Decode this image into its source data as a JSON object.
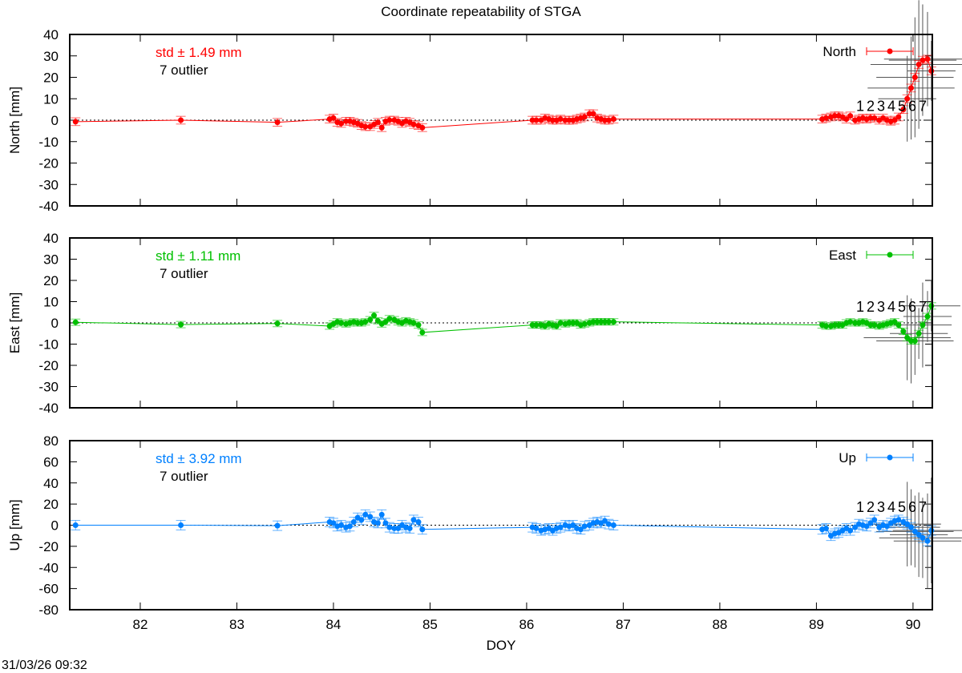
{
  "chart_data": {
    "type": "line",
    "title": "Coordinate repeatability of STGA",
    "xlabel": "DOY",
    "xlim": [
      81.27,
      90.2
    ],
    "xticks": [
      82,
      83,
      84,
      85,
      86,
      87,
      88,
      89,
      90
    ],
    "timestamp": "31/03/26 09:32",
    "doy": [
      81.33,
      82.42,
      83.42,
      83.96,
      84.0,
      84.04,
      84.08,
      84.13,
      84.17,
      84.21,
      84.25,
      84.29,
      84.33,
      84.38,
      84.42,
      84.46,
      84.5,
      84.54,
      84.58,
      84.63,
      84.67,
      84.71,
      84.75,
      84.79,
      84.83,
      84.88,
      84.92,
      86.06,
      86.1,
      86.15,
      86.19,
      86.23,
      86.27,
      86.31,
      86.35,
      86.4,
      86.44,
      86.48,
      86.52,
      86.56,
      86.6,
      86.65,
      86.69,
      86.73,
      86.77,
      86.81,
      86.85,
      86.9,
      89.06,
      89.1,
      89.15,
      89.19,
      89.23,
      89.27,
      89.31,
      89.35,
      89.4,
      89.44,
      89.48,
      89.52,
      89.56,
      89.6,
      89.65,
      89.69,
      89.73,
      89.77,
      89.81,
      89.85,
      89.9,
      89.94,
      89.98,
      90.02,
      90.06,
      90.1,
      90.15,
      90.19
    ],
    "panels": [
      {
        "name": "North",
        "ylabel": "North [mm]",
        "ylim": [
          -40,
          40
        ],
        "yticks": [
          -40,
          -30,
          -20,
          -10,
          0,
          10,
          20,
          30,
          40
        ],
        "color": "#ff0000",
        "std_text": "std ± 1.49 mm",
        "outlier_text": "7 outlier",
        "error": 1.8,
        "values": [
          -0.7,
          0,
          -1,
          0.5,
          1,
          -1,
          -1.5,
          -0.5,
          -0.5,
          -1,
          -1.5,
          -2.5,
          -3,
          -3,
          -2,
          -1,
          -3.5,
          -0.5,
          0,
          0,
          -0.5,
          -1.5,
          -0.5,
          -1,
          -2,
          -2.5,
          -3.5,
          0,
          0,
          0,
          1,
          0.5,
          0,
          0,
          0.5,
          0,
          0,
          0,
          0.5,
          1,
          1.5,
          3,
          3,
          1,
          0.5,
          0,
          0,
          0.5,
          0.5,
          1,
          1.5,
          2,
          2,
          1.5,
          0.5,
          2,
          0,
          0.5,
          1,
          0.5,
          1,
          1,
          0,
          1,
          0,
          -0.5,
          0,
          1.5,
          5,
          10,
          15,
          20,
          26,
          28,
          28.5,
          23
        ],
        "outliers": {
          "labels": [
            "1",
            "2",
            "3",
            "4",
            "5",
            "6",
            "7"
          ],
          "label_value": 7,
          "err_y": [
            20,
            24,
            28,
            30,
            26,
            22,
            14
          ],
          "err_x": [
            0.3,
            0.45,
            0.4,
            0.5,
            0.35,
            0.45,
            0.25
          ]
        }
      },
      {
        "name": "East",
        "ylabel": "East [mm]",
        "ylim": [
          -40,
          40
        ],
        "yticks": [
          -40,
          -30,
          -20,
          -10,
          0,
          10,
          20,
          30,
          40
        ],
        "color": "#00c000",
        "std_text": "std ± 1.11 mm",
        "outlier_text": "7 outlier",
        "error": 1.5,
        "values": [
          0.3,
          -0.8,
          -0.3,
          -1.5,
          -0.5,
          0.5,
          0,
          -0.5,
          0,
          0.5,
          0,
          0,
          0.5,
          1.5,
          3.5,
          1,
          -0.5,
          0.5,
          2,
          1.5,
          0.5,
          0,
          1,
          0.5,
          0,
          -1,
          -4.5,
          -1,
          -1,
          -1,
          -1.5,
          -0.5,
          -1,
          -1.5,
          0,
          -0.5,
          0,
          0,
          0,
          -1,
          -0.5,
          0,
          0.5,
          0.5,
          0.5,
          0.5,
          0.5,
          0.5,
          -1,
          -1.5,
          -1.5,
          -1,
          -1,
          -1,
          0,
          0.5,
          0,
          0,
          0.5,
          0,
          -1,
          -1,
          -1.5,
          -1,
          -0.5,
          0,
          0.5,
          -1,
          -4,
          -7,
          -8.5,
          -8.5,
          -5,
          -1,
          3,
          8
        ],
        "outliers": {
          "labels": [
            "1",
            "2",
            "3",
            "4",
            "5",
            "6",
            "7"
          ],
          "label_value": 8,
          "err_y": [
            20,
            20,
            16,
            12,
            20,
            12,
            12
          ],
          "err_x": [
            0.45,
            0.35,
            0.4,
            0.3,
            0.3,
            0.25,
            0.3
          ]
        }
      },
      {
        "name": "Up",
        "ylabel": "Up [mm]",
        "ylim": [
          -80,
          80
        ],
        "yticks": [
          -80,
          -60,
          -40,
          -20,
          0,
          20,
          40,
          60,
          80
        ],
        "color": "#0080ff",
        "std_text": "std ± 3.92 mm",
        "outlier_text": "7 outlier",
        "error": 4.5,
        "values": [
          0,
          0,
          -0.5,
          3,
          2,
          -1,
          0,
          -2,
          -1,
          3,
          7,
          5,
          10,
          8,
          3,
          2,
          10,
          2,
          -2,
          -3,
          -3,
          0,
          -2,
          -3,
          5,
          3,
          -4,
          -2,
          -3,
          -5,
          -4,
          -3,
          -5,
          -3,
          -2,
          0,
          -1,
          0,
          -3,
          -4,
          -1,
          0,
          2,
          3,
          2,
          4,
          1,
          0,
          -4,
          -3,
          -10,
          -8,
          -7,
          -5,
          -3,
          -5,
          -2,
          1,
          0,
          -1,
          2,
          5,
          -2,
          0,
          -1,
          2,
          4,
          5,
          3,
          1,
          -2,
          -6,
          -9,
          -12,
          -15,
          -5
        ],
        "outliers": {
          "labels": [
            "1",
            "2",
            "3",
            "4",
            "5",
            "6",
            "7"
          ],
          "label_value": 18,
          "err_y": [
            40,
            36,
            34,
            40,
            38,
            45,
            50
          ],
          "err_x": [
            0.35,
            0.3,
            0.4,
            0.3,
            0.45,
            0.35,
            0.4
          ]
        }
      }
    ]
  }
}
